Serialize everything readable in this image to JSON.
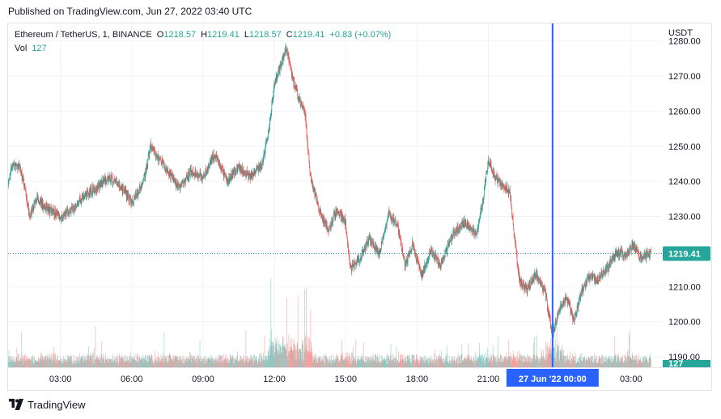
{
  "published": "Published on TradingView.com, Jun 27, 2022 03:40 UTC",
  "legend": {
    "symbol": "Ethereum / TetherUS, 1, BINANCE",
    "o_label": "O",
    "o": "1218.57",
    "h_label": "H",
    "h": "1219.41",
    "l_label": "L",
    "l": "1218.57",
    "c_label": "C",
    "c": "1219.41",
    "change": "+0.83 (+0.07%)",
    "vol_label": "Vol",
    "vol": "127"
  },
  "footer": {
    "brand": "TradingView"
  },
  "colors": {
    "up": "#26a69a",
    "down": "#ef5350",
    "crosshair": "#2962ff",
    "grid": "#f0f3fa",
    "price_line": "#26a69a"
  },
  "chart_data": {
    "type": "candlestick",
    "currency": "USDT",
    "ylim": [
      1187,
      1285
    ],
    "yticks": [
      1280,
      1270,
      1260,
      1250,
      1240,
      1230,
      1220,
      1210,
      1200,
      1190
    ],
    "ytick_labels": [
      "1280.00",
      "1270.00",
      "1260.00",
      "1250.00",
      "1240.00",
      "1230.00",
      "1220.00",
      "1210.00",
      "1200.00",
      "1190.00"
    ],
    "xlim_hours": [
      0.8,
      28.3
    ],
    "xticks_hours": [
      3,
      6,
      9,
      12,
      15,
      18,
      21,
      24,
      27
    ],
    "xtick_labels": [
      "03:00",
      "06:00",
      "09:00",
      "12:00",
      "15:00",
      "18:00",
      "21:00",
      "00:00",
      "03:00"
    ],
    "current_price": 1219.41,
    "current_price_label": "1219.41",
    "current_volume_label": "127",
    "crosshair_hour": 23.7,
    "crosshair_label": "27 Jun '22   00:00",
    "price_path": [
      [
        0.8,
        1240
      ],
      [
        1.0,
        1245
      ],
      [
        1.3,
        1244
      ],
      [
        1.5,
        1238
      ],
      [
        1.7,
        1230
      ],
      [
        2.0,
        1235
      ],
      [
        2.5,
        1232
      ],
      [
        3.0,
        1230
      ],
      [
        3.5,
        1232
      ],
      [
        4.0,
        1236
      ],
      [
        4.5,
        1238
      ],
      [
        5.0,
        1241
      ],
      [
        5.5,
        1239
      ],
      [
        6.0,
        1234
      ],
      [
        6.5,
        1240
      ],
      [
        6.8,
        1250
      ],
      [
        7.2,
        1246
      ],
      [
        7.6,
        1242
      ],
      [
        8.0,
        1238
      ],
      [
        8.5,
        1243
      ],
      [
        9.0,
        1241
      ],
      [
        9.5,
        1248
      ],
      [
        10.0,
        1240
      ],
      [
        10.5,
        1244
      ],
      [
        11.0,
        1241
      ],
      [
        11.5,
        1245
      ],
      [
        11.8,
        1256
      ],
      [
        12.0,
        1268
      ],
      [
        12.2,
        1272
      ],
      [
        12.5,
        1278
      ],
      [
        12.8,
        1268
      ],
      [
        13.0,
        1264
      ],
      [
        13.3,
        1259
      ],
      [
        13.5,
        1242
      ],
      [
        13.8,
        1234
      ],
      [
        14.0,
        1230
      ],
      [
        14.3,
        1226
      ],
      [
        14.6,
        1232
      ],
      [
        15.0,
        1228
      ],
      [
        15.2,
        1215
      ],
      [
        15.6,
        1218
      ],
      [
        16.0,
        1224
      ],
      [
        16.4,
        1219
      ],
      [
        16.8,
        1231
      ],
      [
        17.2,
        1227
      ],
      [
        17.5,
        1216
      ],
      [
        17.8,
        1222
      ],
      [
        18.2,
        1213
      ],
      [
        18.6,
        1220
      ],
      [
        19.0,
        1216
      ],
      [
        19.5,
        1225
      ],
      [
        20.0,
        1228
      ],
      [
        20.5,
        1225
      ],
      [
        20.8,
        1236
      ],
      [
        21.0,
        1246
      ],
      [
        21.3,
        1241
      ],
      [
        21.6,
        1239
      ],
      [
        21.9,
        1237
      ],
      [
        22.1,
        1224
      ],
      [
        22.3,
        1212
      ],
      [
        22.6,
        1209
      ],
      [
        23.0,
        1214
      ],
      [
        23.4,
        1208
      ],
      [
        23.7,
        1196
      ],
      [
        24.0,
        1204
      ],
      [
        24.3,
        1207
      ],
      [
        24.6,
        1200
      ],
      [
        24.9,
        1208
      ],
      [
        25.2,
        1213
      ],
      [
        25.6,
        1212
      ],
      [
        26.0,
        1215
      ],
      [
        26.4,
        1220
      ],
      [
        26.8,
        1219
      ],
      [
        27.1,
        1222
      ],
      [
        27.4,
        1218
      ],
      [
        27.8,
        1219.41
      ]
    ]
  }
}
